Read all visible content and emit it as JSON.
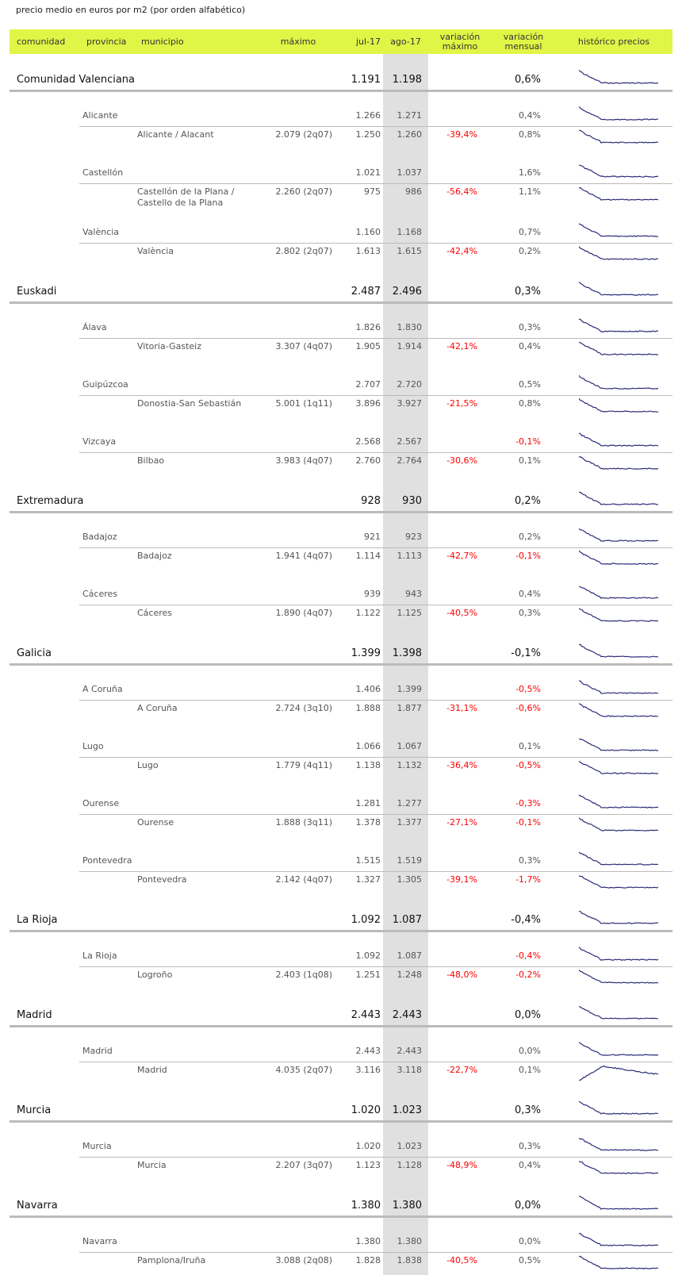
{
  "title": "precio medio en euros por m2 (por orden alfabético)",
  "headers": {
    "comunidad": "comunidad",
    "provincia": "provincia",
    "municipio": "municipio",
    "maximo": "máximo",
    "jul": "jul-17",
    "ago": "ago-17",
    "var_max": "variación máximo",
    "var_mensual": "variación mensual",
    "historico": "histórico precios"
  },
  "colors": {
    "header_bg": "#e0f546",
    "current_column": "#e0e0e0",
    "negative": "#ff0000",
    "sparkline": "#2b2b7a"
  },
  "communities": [
    {
      "name": "Comunidad Valenciana",
      "jul": "1.191",
      "ago": "1.198",
      "mensual": "0,6%",
      "provinces": [
        {
          "name": "Alicante",
          "jul": "1.266",
          "ago": "1.271",
          "mensual": "0,4%",
          "municipios": [
            {
              "name": "Alicante / Alacant",
              "max": "2.079 (2q07)",
              "jul": "1.250",
              "ago": "1.260",
              "var_max": "-39,4%",
              "mensual": "0,8%"
            }
          ]
        },
        {
          "name": "Castellón",
          "jul": "1.021",
          "ago": "1.037",
          "mensual": "1,6%",
          "municipios": [
            {
              "name": "Castellón de la Plana / Castello de la Plana",
              "max": "2.260 (2q07)",
              "jul": "975",
              "ago": "986",
              "var_max": "-56,4%",
              "mensual": "1,1%"
            }
          ]
        },
        {
          "name": "València",
          "jul": "1.160",
          "ago": "1.168",
          "mensual": "0,7%",
          "municipios": [
            {
              "name": "València",
              "max": "2.802 (2q07)",
              "jul": "1.613",
              "ago": "1.615",
              "var_max": "-42,4%",
              "mensual": "0,2%"
            }
          ]
        }
      ]
    },
    {
      "name": "Euskadi",
      "jul": "2.487",
      "ago": "2.496",
      "mensual": "0,3%",
      "provinces": [
        {
          "name": "Álava",
          "jul": "1.826",
          "ago": "1.830",
          "mensual": "0,3%",
          "municipios": [
            {
              "name": "Vitoria-Gasteiz",
              "max": "3.307 (4q07)",
              "jul": "1.905",
              "ago": "1.914",
              "var_max": "-42,1%",
              "mensual": "0,4%"
            }
          ]
        },
        {
          "name": "Guipúzcoa",
          "jul": "2.707",
          "ago": "2.720",
          "mensual": "0,5%",
          "municipios": [
            {
              "name": "Donostia-San Sebastián",
              "max": "5.001 (1q11)",
              "jul": "3.896",
              "ago": "3.927",
              "var_max": "-21,5%",
              "mensual": "0,8%"
            }
          ]
        },
        {
          "name": "Vizcaya",
          "jul": "2.568",
          "ago": "2.567",
          "mensual": "-0,1%",
          "municipios": [
            {
              "name": "Bilbao",
              "max": "3.983 (4q07)",
              "jul": "2.760",
              "ago": "2.764",
              "var_max": "-30,6%",
              "mensual": "0,1%"
            }
          ]
        }
      ]
    },
    {
      "name": "Extremadura",
      "jul": "928",
      "ago": "930",
      "mensual": "0,2%",
      "provinces": [
        {
          "name": "Badajoz",
          "jul": "921",
          "ago": "923",
          "mensual": "0,2%",
          "municipios": [
            {
              "name": "Badajoz",
              "max": "1.941 (4q07)",
              "jul": "1.114",
              "ago": "1.113",
              "var_max": "-42,7%",
              "mensual": "-0,1%"
            }
          ]
        },
        {
          "name": "Cáceres",
          "jul": "939",
          "ago": "943",
          "mensual": "0,4%",
          "municipios": [
            {
              "name": "Cáceres",
              "max": "1.890 (4q07)",
              "jul": "1.122",
              "ago": "1.125",
              "var_max": "-40,5%",
              "mensual": "0,3%"
            }
          ]
        }
      ]
    },
    {
      "name": "Galicia",
      "jul": "1.399",
      "ago": "1.398",
      "mensual": "-0,1%",
      "provinces": [
        {
          "name": "A Coruña",
          "jul": "1.406",
          "ago": "1.399",
          "mensual": "-0,5%",
          "municipios": [
            {
              "name": "A Coruña",
              "max": "2.724 (3q10)",
              "jul": "1.888",
              "ago": "1.877",
              "var_max": "-31,1%",
              "mensual": "-0,6%"
            }
          ]
        },
        {
          "name": "Lugo",
          "jul": "1.066",
          "ago": "1.067",
          "mensual": "0,1%",
          "municipios": [
            {
              "name": "Lugo",
              "max": "1.779 (4q11)",
              "jul": "1.138",
              "ago": "1.132",
              "var_max": "-36,4%",
              "mensual": "-0,5%"
            }
          ]
        },
        {
          "name": "Ourense",
          "jul": "1.281",
          "ago": "1.277",
          "mensual": "-0,3%",
          "municipios": [
            {
              "name": "Ourense",
              "max": "1.888 (3q11)",
              "jul": "1.378",
              "ago": "1.377",
              "var_max": "-27,1%",
              "mensual": "-0,1%"
            }
          ]
        },
        {
          "name": "Pontevedra",
          "jul": "1.515",
          "ago": "1.519",
          "mensual": "0,3%",
          "municipios": [
            {
              "name": "Pontevedra",
              "max": "2.142 (4q07)",
              "jul": "1.327",
              "ago": "1.305",
              "var_max": "-39,1%",
              "mensual": "-1,7%"
            }
          ]
        }
      ]
    },
    {
      "name": "La Rioja",
      "jul": "1.092",
      "ago": "1.087",
      "mensual": "-0,4%",
      "provinces": [
        {
          "name": "La Rioja",
          "jul": "1.092",
          "ago": "1.087",
          "mensual": "-0,4%",
          "municipios": [
            {
              "name": "Logroño",
              "max": "2.403 (1q08)",
              "jul": "1.251",
              "ago": "1.248",
              "var_max": "-48,0%",
              "mensual": "-0,2%"
            }
          ]
        }
      ]
    },
    {
      "name": "Madrid",
      "jul": "2.443",
      "ago": "2.443",
      "mensual": "0,0%",
      "provinces": [
        {
          "name": "Madrid",
          "jul": "2.443",
          "ago": "2.443",
          "mensual": "0,0%",
          "municipios": [
            {
              "name": "Madrid",
              "max": "4.035 (2q07)",
              "jul": "3.116",
              "ago": "3.118",
              "var_max": "-22,7%",
              "mensual": "0,1%"
            }
          ]
        }
      ]
    },
    {
      "name": "Murcia",
      "jul": "1.020",
      "ago": "1.023",
      "mensual": "0,3%",
      "provinces": [
        {
          "name": "Murcia",
          "jul": "1.020",
          "ago": "1.023",
          "mensual": "0,3%",
          "municipios": [
            {
              "name": "Murcia",
              "max": "2.207 (3q07)",
              "jul": "1.123",
              "ago": "1.128",
              "var_max": "-48,9%",
              "mensual": "0,4%"
            }
          ]
        }
      ]
    },
    {
      "name": "Navarra",
      "jul": "1.380",
      "ago": "1.380",
      "mensual": "0,0%",
      "provinces": [
        {
          "name": "Navarra",
          "jul": "1.380",
          "ago": "1.380",
          "mensual": "0,0%",
          "municipios": [
            {
              "name": "Pamplona/Iruña",
              "max": "3.088 (2q08)",
              "jul": "1.828",
              "ago": "1.838",
              "var_max": "-40,5%",
              "mensual": "0,5%"
            }
          ]
        }
      ]
    }
  ]
}
